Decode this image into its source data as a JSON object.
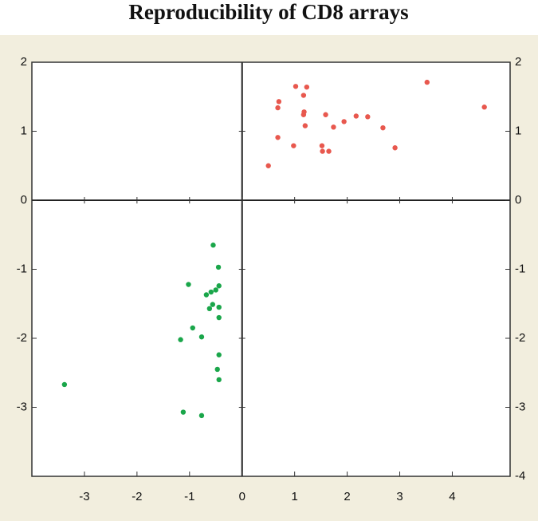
{
  "chart_data": {
    "type": "scatter",
    "title": "Reproducibility of CD8 arrays",
    "xlim": [
      -4,
      5.1
    ],
    "ylim": [
      -4,
      2
    ],
    "y2lim": [
      -4,
      2
    ],
    "xticks": [
      -3,
      -2,
      -1,
      0,
      1,
      2,
      3,
      4
    ],
    "yticks": [
      -3,
      -2,
      -1,
      0,
      1,
      2
    ],
    "y2ticks": [
      -4,
      -3,
      -2,
      -1,
      0,
      1,
      2
    ],
    "series": [
      {
        "color": "#e8584e",
        "x": [
          1.02,
          1.23,
          1.17,
          0.7,
          0.68,
          1.18,
          1.17,
          1.59,
          2.39,
          2.17,
          1.94,
          1.2,
          1.74,
          2.68,
          0.68,
          0.98,
          1.52,
          1.53,
          1.65,
          2.91,
          0.5,
          3.52,
          4.61
        ],
        "values": [
          1.65,
          1.64,
          1.52,
          1.43,
          1.34,
          1.28,
          1.24,
          1.24,
          1.21,
          1.22,
          1.14,
          1.08,
          1.06,
          1.05,
          0.91,
          0.79,
          0.79,
          0.71,
          0.71,
          0.76,
          0.5,
          1.71,
          1.35
        ]
      },
      {
        "color": "#1aa64a",
        "x": [
          -0.55,
          -0.45,
          -1.02,
          -0.44,
          -0.5,
          -0.59,
          -0.68,
          -0.56,
          -0.62,
          -0.44,
          -0.44,
          -0.94,
          -0.77,
          -1.17,
          -0.44,
          -0.47,
          -0.44,
          -3.38,
          -1.12,
          -0.77
        ],
        "values": [
          -0.65,
          -0.97,
          -1.22,
          -1.24,
          -1.3,
          -1.33,
          -1.37,
          -1.51,
          -1.57,
          -1.55,
          -1.7,
          -1.85,
          -1.98,
          -2.02,
          -2.24,
          -2.45,
          -2.6,
          -2.67,
          -3.07,
          -3.12
        ]
      }
    ]
  }
}
